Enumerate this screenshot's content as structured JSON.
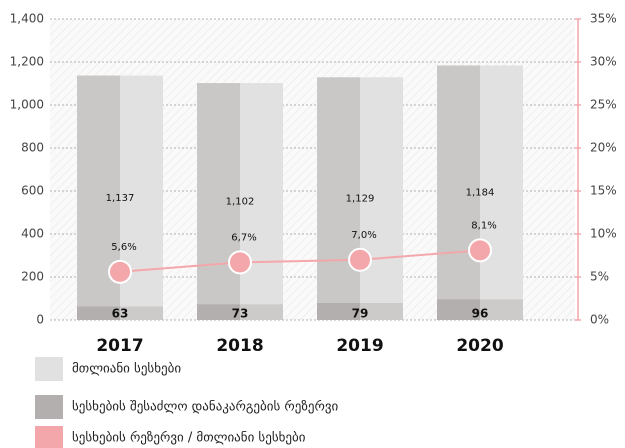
{
  "chart_data": {
    "type": "bar",
    "categories": [
      "2017",
      "2018",
      "2019",
      "2020"
    ],
    "series": [
      {
        "name": "მთლიანი სესხები",
        "color": "#e2e1e1",
        "values": [
          1137,
          1102,
          1129,
          1184
        ],
        "value_labels": [
          "1,137",
          "1,102",
          "1,129",
          "1,184"
        ]
      },
      {
        "name": "სესხების შესაძლო დანაკარგების რეზერვი",
        "color": "#b3afae",
        "values": [
          63,
          73,
          79,
          96
        ]
      },
      {
        "name": "სესხების რეზერვი / მთლიანი სესხები",
        "color": "#f4a7aa",
        "type": "line",
        "axis": "y2",
        "values": [
          5.6,
          6.7,
          7.0,
          8.1
        ],
        "value_labels": [
          "5,6%",
          "6,7%",
          "7,0%",
          "8,1%"
        ]
      }
    ],
    "ylim": [
      0,
      1400
    ],
    "yticks": [
      0,
      200,
      400,
      600,
      800,
      {
        "value": 1000,
        "label": "1,000"
      },
      {
        "value": 1200,
        "label": "1,200"
      },
      {
        "value": 1400,
        "label": "1,400"
      }
    ],
    "y2lim": [
      0,
      35
    ],
    "y2ticks": [
      {
        "value": 0,
        "label": "0%"
      },
      {
        "value": 5,
        "label": "5%"
      },
      {
        "value": 10,
        "label": "10%"
      },
      {
        "value": 15,
        "label": "15%"
      },
      {
        "value": 20,
        "label": "20%"
      },
      {
        "value": 25,
        "label": "25%"
      },
      {
        "value": 30,
        "label": "30%"
      },
      {
        "value": 35,
        "label": "35%"
      }
    ],
    "grid": true,
    "legend": "bottom"
  }
}
